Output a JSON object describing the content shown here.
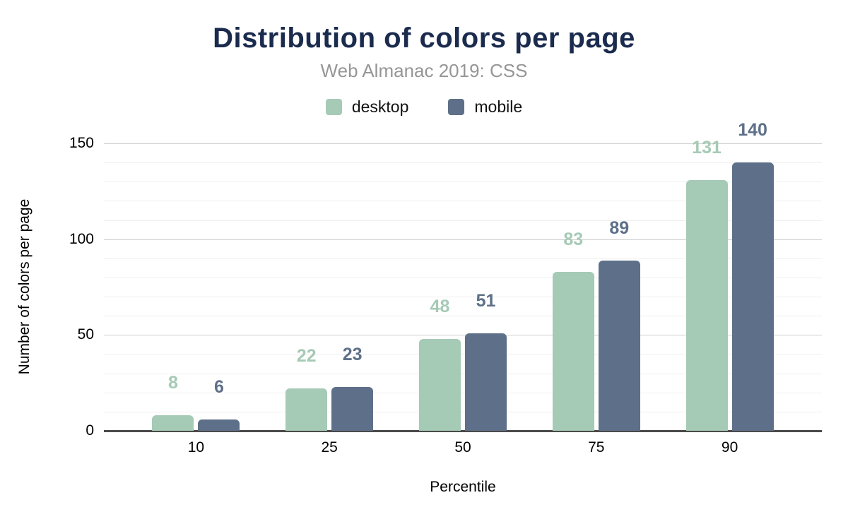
{
  "chart_data": {
    "type": "bar",
    "title": "Distribution of colors per page",
    "subtitle": "Web Almanac 2019: CSS",
    "xlabel": "Percentile",
    "ylabel": "Number of colors per page",
    "categories": [
      "10",
      "25",
      "50",
      "75",
      "90"
    ],
    "series": [
      {
        "name": "desktop",
        "color": "#a5cab5",
        "values": [
          8,
          22,
          48,
          83,
          131
        ]
      },
      {
        "name": "mobile",
        "color": "#5e7089",
        "values": [
          6,
          23,
          51,
          89,
          140
        ]
      }
    ],
    "ylim": [
      0,
      150
    ],
    "yticks": [
      0,
      50,
      100,
      150
    ],
    "minor_grid_step": 10,
    "grid": true,
    "legend_position": "top",
    "data_labels": true,
    "colors": {
      "title": "#1b2b4e",
      "subtitle": "#969696",
      "axis_text": "#000000",
      "major_grid": "#cfcfcf",
      "minor_grid": "#efefef",
      "axis_line": "#4a4a4a"
    }
  }
}
